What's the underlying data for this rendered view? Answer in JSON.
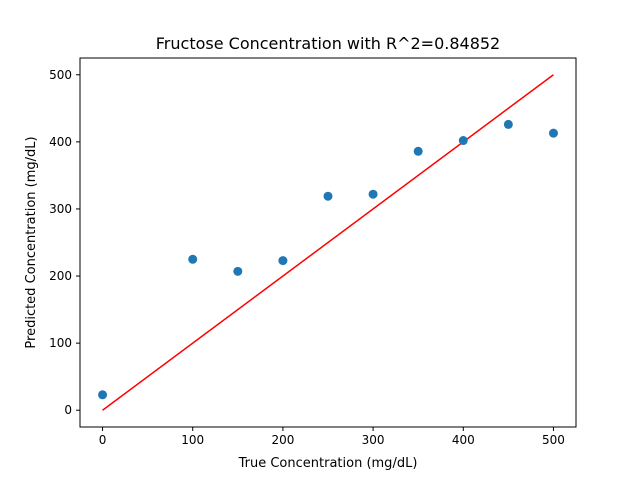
{
  "chart_data": {
    "type": "scatter",
    "title": "Fructose Concentration with R^2=0.84852",
    "xlabel": "True Concentration (mg/dL)",
    "ylabel": "Predicted Concentration (mg/dL)",
    "xlim": [
      -25,
      525
    ],
    "ylim": [
      -25,
      525
    ],
    "xticks": [
      0,
      100,
      200,
      300,
      400,
      500
    ],
    "yticks": [
      0,
      100,
      200,
      300,
      400,
      500
    ],
    "grid": false,
    "series": [
      {
        "type": "scatter",
        "color": "#1f77b4",
        "x": [
          0,
          100,
          150,
          200,
          250,
          300,
          350,
          400,
          450,
          500
        ],
        "y": [
          23,
          225,
          207,
          223,
          319,
          322,
          386,
          402,
          426,
          413
        ]
      },
      {
        "type": "line",
        "color": "#ff0000",
        "x": [
          0,
          500
        ],
        "y": [
          0,
          500
        ]
      }
    ]
  }
}
